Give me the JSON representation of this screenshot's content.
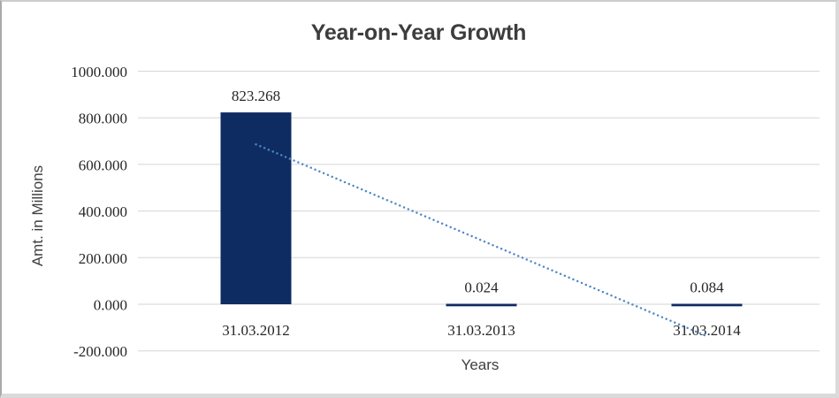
{
  "chart_data": {
    "type": "bar",
    "title": "Year-on-Year Growth",
    "xlabel": "Years",
    "ylabel": "Amt. in Millions",
    "categories": [
      "31.03.2012",
      "31.03.2013",
      "31.03.2014"
    ],
    "values": [
      823.268,
      0.024,
      0.084
    ],
    "value_labels": [
      "823.268",
      "0.024",
      "0.084"
    ],
    "ylim": [
      -200,
      1000
    ],
    "yticks": [
      1000,
      800,
      600,
      400,
      200,
      0,
      -200
    ],
    "ytick_labels": [
      "1000.000",
      "800.000",
      "600.000",
      "400.000",
      "200.000",
      "0.000",
      "-200.000"
    ],
    "grid": true,
    "legend": false,
    "colors": {
      "bar": "#0e2c62",
      "trendline": "#4f86c8",
      "gridline": "#d6d6d6",
      "title_text": "#3d3d3d",
      "tick_text": "#262626",
      "axis_title_text": "#404040"
    },
    "trendline": {
      "style": "dotted",
      "points": [
        {
          "category_index": 0,
          "value": 686.1
        },
        {
          "category_index": 2,
          "value": -137.1
        }
      ]
    }
  }
}
